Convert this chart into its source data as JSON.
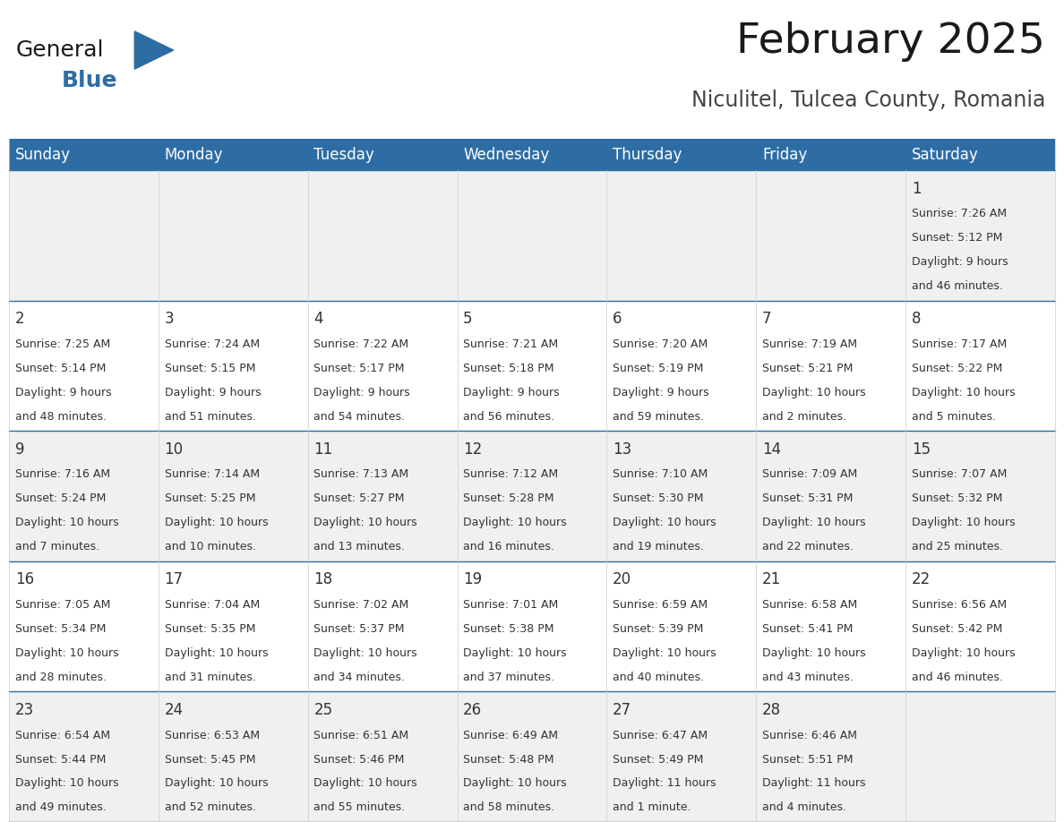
{
  "title": "February 2025",
  "subtitle": "Niculitel, Tulcea County, Romania",
  "header_bg": "#2E6DA4",
  "header_text_color": "#FFFFFF",
  "row_bg": [
    "#F0F0F0",
    "#FFFFFF",
    "#F0F0F0",
    "#FFFFFF",
    "#F0F0F0"
  ],
  "day_headers": [
    "Sunday",
    "Monday",
    "Tuesday",
    "Wednesday",
    "Thursday",
    "Friday",
    "Saturday"
  ],
  "days": [
    {
      "day": 1,
      "col": 6,
      "row": 0,
      "sunrise": "7:26 AM",
      "sunset": "5:12 PM",
      "daylight": "9 hours",
      "daylight2": "and 46 minutes."
    },
    {
      "day": 2,
      "col": 0,
      "row": 1,
      "sunrise": "7:25 AM",
      "sunset": "5:14 PM",
      "daylight": "9 hours",
      "daylight2": "and 48 minutes."
    },
    {
      "day": 3,
      "col": 1,
      "row": 1,
      "sunrise": "7:24 AM",
      "sunset": "5:15 PM",
      "daylight": "9 hours",
      "daylight2": "and 51 minutes."
    },
    {
      "day": 4,
      "col": 2,
      "row": 1,
      "sunrise": "7:22 AM",
      "sunset": "5:17 PM",
      "daylight": "9 hours",
      "daylight2": "and 54 minutes."
    },
    {
      "day": 5,
      "col": 3,
      "row": 1,
      "sunrise": "7:21 AM",
      "sunset": "5:18 PM",
      "daylight": "9 hours",
      "daylight2": "and 56 minutes."
    },
    {
      "day": 6,
      "col": 4,
      "row": 1,
      "sunrise": "7:20 AM",
      "sunset": "5:19 PM",
      "daylight": "9 hours",
      "daylight2": "and 59 minutes."
    },
    {
      "day": 7,
      "col": 5,
      "row": 1,
      "sunrise": "7:19 AM",
      "sunset": "5:21 PM",
      "daylight": "10 hours",
      "daylight2": "and 2 minutes."
    },
    {
      "day": 8,
      "col": 6,
      "row": 1,
      "sunrise": "7:17 AM",
      "sunset": "5:22 PM",
      "daylight": "10 hours",
      "daylight2": "and 5 minutes."
    },
    {
      "day": 9,
      "col": 0,
      "row": 2,
      "sunrise": "7:16 AM",
      "sunset": "5:24 PM",
      "daylight": "10 hours",
      "daylight2": "and 7 minutes."
    },
    {
      "day": 10,
      "col": 1,
      "row": 2,
      "sunrise": "7:14 AM",
      "sunset": "5:25 PM",
      "daylight": "10 hours",
      "daylight2": "and 10 minutes."
    },
    {
      "day": 11,
      "col": 2,
      "row": 2,
      "sunrise": "7:13 AM",
      "sunset": "5:27 PM",
      "daylight": "10 hours",
      "daylight2": "and 13 minutes."
    },
    {
      "day": 12,
      "col": 3,
      "row": 2,
      "sunrise": "7:12 AM",
      "sunset": "5:28 PM",
      "daylight": "10 hours",
      "daylight2": "and 16 minutes."
    },
    {
      "day": 13,
      "col": 4,
      "row": 2,
      "sunrise": "7:10 AM",
      "sunset": "5:30 PM",
      "daylight": "10 hours",
      "daylight2": "and 19 minutes."
    },
    {
      "day": 14,
      "col": 5,
      "row": 2,
      "sunrise": "7:09 AM",
      "sunset": "5:31 PM",
      "daylight": "10 hours",
      "daylight2": "and 22 minutes."
    },
    {
      "day": 15,
      "col": 6,
      "row": 2,
      "sunrise": "7:07 AM",
      "sunset": "5:32 PM",
      "daylight": "10 hours",
      "daylight2": "and 25 minutes."
    },
    {
      "day": 16,
      "col": 0,
      "row": 3,
      "sunrise": "7:05 AM",
      "sunset": "5:34 PM",
      "daylight": "10 hours",
      "daylight2": "and 28 minutes."
    },
    {
      "day": 17,
      "col": 1,
      "row": 3,
      "sunrise": "7:04 AM",
      "sunset": "5:35 PM",
      "daylight": "10 hours",
      "daylight2": "and 31 minutes."
    },
    {
      "day": 18,
      "col": 2,
      "row": 3,
      "sunrise": "7:02 AM",
      "sunset": "5:37 PM",
      "daylight": "10 hours",
      "daylight2": "and 34 minutes."
    },
    {
      "day": 19,
      "col": 3,
      "row": 3,
      "sunrise": "7:01 AM",
      "sunset": "5:38 PM",
      "daylight": "10 hours",
      "daylight2": "and 37 minutes."
    },
    {
      "day": 20,
      "col": 4,
      "row": 3,
      "sunrise": "6:59 AM",
      "sunset": "5:39 PM",
      "daylight": "10 hours",
      "daylight2": "and 40 minutes."
    },
    {
      "day": 21,
      "col": 5,
      "row": 3,
      "sunrise": "6:58 AM",
      "sunset": "5:41 PM",
      "daylight": "10 hours",
      "daylight2": "and 43 minutes."
    },
    {
      "day": 22,
      "col": 6,
      "row": 3,
      "sunrise": "6:56 AM",
      "sunset": "5:42 PM",
      "daylight": "10 hours",
      "daylight2": "and 46 minutes."
    },
    {
      "day": 23,
      "col": 0,
      "row": 4,
      "sunrise": "6:54 AM",
      "sunset": "5:44 PM",
      "daylight": "10 hours",
      "daylight2": "and 49 minutes."
    },
    {
      "day": 24,
      "col": 1,
      "row": 4,
      "sunrise": "6:53 AM",
      "sunset": "5:45 PM",
      "daylight": "10 hours",
      "daylight2": "and 52 minutes."
    },
    {
      "day": 25,
      "col": 2,
      "row": 4,
      "sunrise": "6:51 AM",
      "sunset": "5:46 PM",
      "daylight": "10 hours",
      "daylight2": "and 55 minutes."
    },
    {
      "day": 26,
      "col": 3,
      "row": 4,
      "sunrise": "6:49 AM",
      "sunset": "5:48 PM",
      "daylight": "10 hours",
      "daylight2": "and 58 minutes."
    },
    {
      "day": 27,
      "col": 4,
      "row": 4,
      "sunrise": "6:47 AM",
      "sunset": "5:49 PM",
      "daylight": "11 hours",
      "daylight2": "and 1 minute."
    },
    {
      "day": 28,
      "col": 5,
      "row": 4,
      "sunrise": "6:46 AM",
      "sunset": "5:51 PM",
      "daylight": "11 hours",
      "daylight2": "and 4 minutes."
    }
  ],
  "num_rows": 5,
  "num_cols": 7,
  "title_fontsize": 34,
  "subtitle_fontsize": 17,
  "header_fontsize": 12,
  "day_number_fontsize": 12,
  "cell_text_fontsize": 9,
  "divider_color": "#2E6DA4",
  "text_color": "#333333",
  "line_color": "#CCCCCC",
  "logo_triangle_color": "#2E6DA4"
}
